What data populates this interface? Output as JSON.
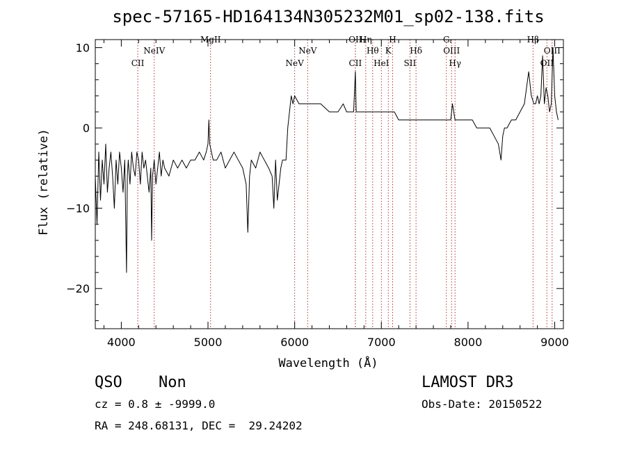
{
  "chart_data": {
    "type": "line",
    "title": "spec-57165-HD164134N305232M01_sp02-138.fits",
    "xlabel": "Wavelength (Å)",
    "ylabel": "Flux (relative)",
    "xlim": [
      3700,
      9100
    ],
    "ylim": [
      -25,
      11
    ],
    "xticks": [
      4000,
      5000,
      6000,
      7000,
      8000,
      9000
    ],
    "yticks": [
      -20,
      -10,
      0,
      10
    ],
    "grid": false,
    "series": [
      {
        "color": "#000000",
        "x": [
          3700,
          3720,
          3740,
          3760,
          3780,
          3800,
          3820,
          3840,
          3860,
          3880,
          3900,
          3920,
          3940,
          3960,
          3980,
          4000,
          4020,
          4040,
          4060,
          4070,
          4080,
          4100,
          4120,
          4140,
          4160,
          4180,
          4200,
          4220,
          4240,
          4260,
          4280,
          4300,
          4320,
          4340,
          4350,
          4360,
          4380,
          4400,
          4420,
          4440,
          4460,
          4480,
          4500,
          4550,
          4600,
          4650,
          4700,
          4750,
          4800,
          4850,
          4900,
          4950,
          4980,
          5000,
          5010,
          5020,
          5040,
          5060,
          5100,
          5150,
          5200,
          5250,
          5300,
          5350,
          5400,
          5440,
          5460,
          5480,
          5500,
          5550,
          5600,
          5650,
          5700,
          5740,
          5760,
          5780,
          5800,
          5840,
          5860,
          5880,
          5900,
          5920,
          5940,
          5960,
          5980,
          6000,
          6050,
          6100,
          6150,
          6200,
          6300,
          6400,
          6500,
          6560,
          6600,
          6650,
          6680,
          6700,
          6710,
          6730,
          6760,
          6800,
          6850,
          6900,
          6950,
          7000,
          7050,
          7100,
          7150,
          7200,
          7250,
          7300,
          7350,
          7400,
          7450,
          7500,
          7550,
          7600,
          7650,
          7700,
          7750,
          7800,
          7820,
          7850,
          7900,
          7950,
          8000,
          8050,
          8100,
          8150,
          8200,
          8250,
          8300,
          8350,
          8380,
          8400,
          8420,
          8450,
          8500,
          8550,
          8600,
          8650,
          8700,
          8730,
          8760,
          8780,
          8800,
          8820,
          8840,
          8860,
          8880,
          8900,
          8920,
          8940,
          8960,
          8980,
          9000,
          9020,
          9040
        ],
        "y": [
          -6,
          -12,
          -3,
          -9,
          -4,
          -7,
          -2,
          -8,
          -5,
          -3,
          -6,
          -10,
          -4,
          -7,
          -3,
          -5,
          -8,
          -4,
          -18,
          -6,
          -4,
          -7,
          -3,
          -5,
          -6,
          -3,
          -4,
          -7,
          -3,
          -5,
          -4,
          -6,
          -8,
          -5,
          -14,
          -6,
          -4,
          -7,
          -5,
          -3,
          -6,
          -4,
          -5,
          -6,
          -4,
          -5,
          -4,
          -5,
          -4,
          -4,
          -3,
          -4,
          -3,
          -2,
          1,
          -2,
          -3,
          -4,
          -4,
          -3,
          -5,
          -4,
          -3,
          -4,
          -5,
          -7,
          -13,
          -6,
          -4,
          -5,
          -3,
          -4,
          -5,
          -6,
          -10,
          -4,
          -9,
          -5,
          -4,
          -4,
          -4,
          0,
          2,
          4,
          3,
          4,
          3,
          3,
          3,
          3,
          3,
          2,
          2,
          3,
          2,
          2,
          2,
          7,
          2,
          2,
          2,
          2,
          2,
          2,
          2,
          2,
          2,
          2,
          2,
          1,
          1,
          1,
          1,
          1,
          1,
          1,
          1,
          1,
          1,
          1,
          1,
          1,
          3,
          1,
          1,
          1,
          1,
          1,
          0,
          0,
          0,
          0,
          -1,
          -2,
          -4,
          -1,
          0,
          0,
          1,
          1,
          2,
          3,
          7,
          4,
          3,
          3,
          4,
          3,
          4,
          9,
          3,
          5,
          4,
          2,
          3,
          10,
          4,
          2,
          1
        ]
      }
    ],
    "lines": [
      {
        "label": "CII",
        "wavelength": 4190,
        "row": 2
      },
      {
        "label": "NeIV",
        "wavelength": 4380,
        "row": 1
      },
      {
        "label": "MgII",
        "wavelength": 5030,
        "row": 0
      },
      {
        "label": "NeV",
        "wavelength": 6000,
        "row": 2
      },
      {
        "label": "NeV",
        "wavelength": 6150,
        "row": 1
      },
      {
        "label": "OII",
        "wavelength": 6700,
        "row": 0
      },
      {
        "label": "CII",
        "wavelength": 6700,
        "row": 2
      },
      {
        "label": "Hη",
        "wavelength": 6820,
        "row": 0
      },
      {
        "label": "Hθ",
        "wavelength": 6900,
        "row": 1
      },
      {
        "label": "HeI",
        "wavelength": 7000,
        "row": 2
      },
      {
        "label": "H",
        "wavelength": 7130,
        "row": 0
      },
      {
        "label": "K",
        "wavelength": 7080,
        "row": 1
      },
      {
        "label": "SII",
        "wavelength": 7330,
        "row": 2
      },
      {
        "label": "Hδ",
        "wavelength": 7400,
        "row": 1
      },
      {
        "label": "G",
        "wavelength": 7750,
        "row": 0
      },
      {
        "label": "OIII",
        "wavelength": 7810,
        "row": 1
      },
      {
        "label": "Hγ",
        "wavelength": 7850,
        "row": 2
      },
      {
        "label": "Hβ",
        "wavelength": 8750,
        "row": 0
      },
      {
        "label": "OII",
        "wavelength": 8910,
        "row": 2
      },
      {
        "label": "OIII",
        "wavelength": 8970,
        "row": 1
      }
    ]
  },
  "info": {
    "class": "QSO",
    "subclass": "Non",
    "survey": "LAMOST DR3",
    "cz": "cz = 0.8 ± -9999.0",
    "obs_date": "Obs-Date: 20150522",
    "coords": "RA = 248.68131, DEC =  29.24202"
  },
  "colors": {
    "line_marker": "#b03030",
    "spectrum": "#000000"
  }
}
